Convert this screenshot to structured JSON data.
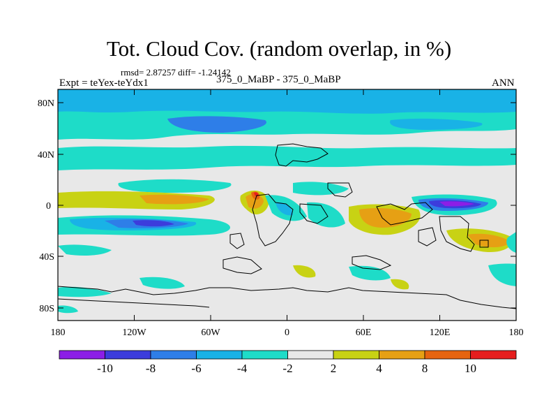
{
  "title": "Tot. Cloud Cov. (random overlap, in %)",
  "stats": "rmsd= 2.87257 diff= -1.24142",
  "experiment": "Expt = teYex-teYdx1",
  "case": "375_0_MaBP - 375_0_MaBP",
  "season": "ANN",
  "chart_data": {
    "type": "heatmap",
    "x_ticks": [
      "180",
      "120W",
      "60W",
      "0",
      "60E",
      "120E",
      "180"
    ],
    "y_ticks": [
      "80N",
      "40N",
      "0",
      "40S",
      "80S"
    ],
    "xlim": [
      -180,
      180
    ],
    "ylim": [
      -90,
      90
    ],
    "colorbar": {
      "labels": [
        "-10",
        "-8",
        "-6",
        "-4",
        "-2",
        "2",
        "4",
        "8",
        "10"
      ],
      "colors": [
        "#8c1ee6",
        "#3c3cdc",
        "#2e7ee8",
        "#19b2e6",
        "#1edcc8",
        "#e8e8e8",
        "#c8d214",
        "#e6a014",
        "#e6640f",
        "#e61e1e"
      ]
    },
    "contour_fill": {
      "background": "#e8e8e8",
      "note": "difference field of total cloud cover"
    }
  }
}
